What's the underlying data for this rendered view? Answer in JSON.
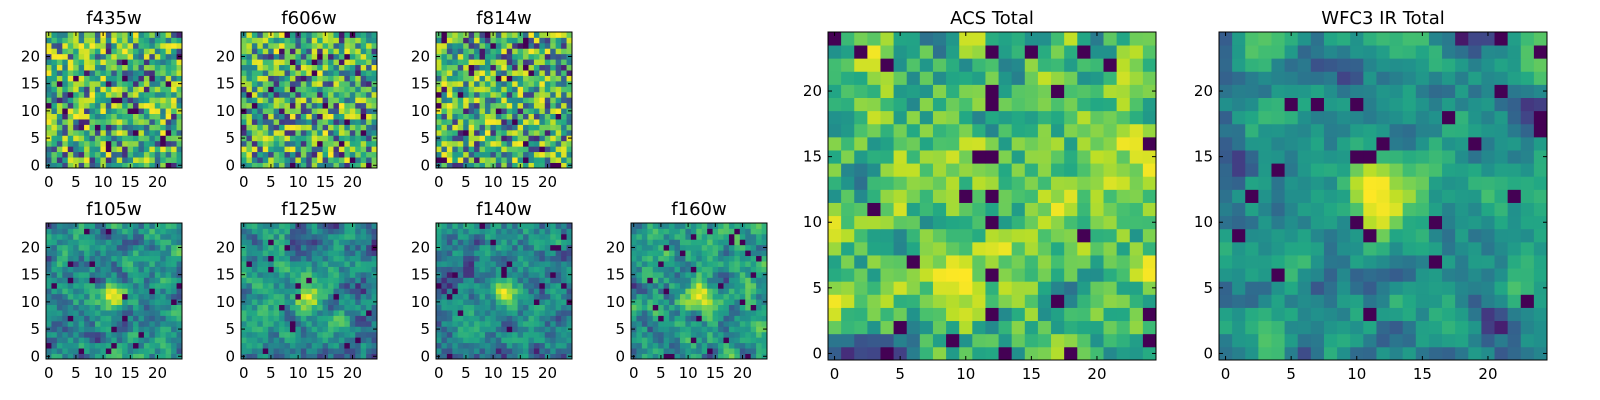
{
  "chart_data": [
    {
      "type": "heatmap",
      "title": "f435w",
      "grid": [
        25,
        25
      ],
      "x_ticks": [
        "0",
        "5",
        "10",
        "15",
        "20"
      ],
      "y_ticks": [
        "0",
        "5",
        "10",
        "15",
        "20"
      ],
      "xlim": [
        -0.5,
        24.5
      ],
      "ylim": [
        -0.5,
        24.5
      ],
      "colormap": "viridis",
      "blob": null,
      "noise_scale": 1,
      "seed": 11
    },
    {
      "type": "heatmap",
      "title": "f606w",
      "grid": [
        25,
        25
      ],
      "x_ticks": [
        "0",
        "5",
        "10",
        "15",
        "20"
      ],
      "y_ticks": [
        "0",
        "5",
        "10",
        "15",
        "20"
      ],
      "xlim": [
        -0.5,
        24.5
      ],
      "ylim": [
        -0.5,
        24.5
      ],
      "colormap": "viridis",
      "blob": null,
      "noise_scale": 1,
      "seed": 23
    },
    {
      "type": "heatmap",
      "title": "f814w",
      "grid": [
        25,
        25
      ],
      "x_ticks": [
        "0",
        "5",
        "10",
        "15",
        "20"
      ],
      "y_ticks": [
        "0",
        "5",
        "10",
        "15",
        "20"
      ],
      "xlim": [
        -0.5,
        24.5
      ],
      "ylim": [
        -0.5,
        24.5
      ],
      "colormap": "viridis",
      "blob": null,
      "noise_scale": 1,
      "seed": 37
    },
    {
      "type": "heatmap",
      "title": "f105w",
      "grid": [
        25,
        25
      ],
      "x_ticks": [
        "0",
        "5",
        "10",
        "15",
        "20"
      ],
      "y_ticks": [
        "0",
        "5",
        "10",
        "15",
        "20"
      ],
      "xlim": [
        -0.5,
        24.5
      ],
      "ylim": [
        -0.5,
        24.5
      ],
      "colormap": "viridis",
      "blob": [
        12,
        11
      ],
      "noise_scale": 2,
      "seed": 41
    },
    {
      "type": "heatmap",
      "title": "f125w",
      "grid": [
        25,
        25
      ],
      "x_ticks": [
        "0",
        "5",
        "10",
        "15",
        "20"
      ],
      "y_ticks": [
        "0",
        "5",
        "10",
        "15",
        "20"
      ],
      "xlim": [
        -0.5,
        24.5
      ],
      "ylim": [
        -0.5,
        24.5
      ],
      "colormap": "viridis",
      "blob": [
        12,
        11
      ],
      "noise_scale": 2,
      "seed": 53
    },
    {
      "type": "heatmap",
      "title": "f140w",
      "grid": [
        25,
        25
      ],
      "x_ticks": [
        "0",
        "5",
        "10",
        "15",
        "20"
      ],
      "y_ticks": [
        "0",
        "5",
        "10",
        "15",
        "20"
      ],
      "xlim": [
        -0.5,
        24.5
      ],
      "ylim": [
        -0.5,
        24.5
      ],
      "colormap": "viridis",
      "blob": [
        12,
        12
      ],
      "noise_scale": 2,
      "seed": 67
    },
    {
      "type": "heatmap",
      "title": "f160w",
      "grid": [
        25,
        25
      ],
      "x_ticks": [
        "0",
        "5",
        "10",
        "15",
        "20"
      ],
      "y_ticks": [
        "0",
        "5",
        "10",
        "15",
        "20"
      ],
      "xlim": [
        -0.5,
        24.5
      ],
      "ylim": [
        -0.5,
        24.5
      ],
      "colormap": "viridis",
      "blob": [
        12,
        11
      ],
      "noise_scale": 2,
      "seed": 79
    },
    {
      "type": "heatmap",
      "title": "ACS Total",
      "grid": [
        25,
        25
      ],
      "x_ticks": [
        "0",
        "5",
        "10",
        "15",
        "20"
      ],
      "y_ticks": [
        "0",
        "5",
        "10",
        "15",
        "20"
      ],
      "xlim": [
        -0.5,
        24.5
      ],
      "ylim": [
        -0.5,
        24.5
      ],
      "colormap": "viridis",
      "blob": null,
      "noise_scale": 1.5,
      "seed": 97
    },
    {
      "type": "heatmap",
      "title": "WFC3 IR Total",
      "grid": [
        25,
        25
      ],
      "x_ticks": [
        "0",
        "5",
        "10",
        "15",
        "20"
      ],
      "y_ticks": [
        "0",
        "5",
        "10",
        "15",
        "20"
      ],
      "xlim": [
        -0.5,
        24.5
      ],
      "ylim": [
        -0.5,
        24.5
      ],
      "colormap": "viridis",
      "blob": [
        12,
        12
      ],
      "noise_scale": 2.5,
      "seed": 113
    }
  ]
}
